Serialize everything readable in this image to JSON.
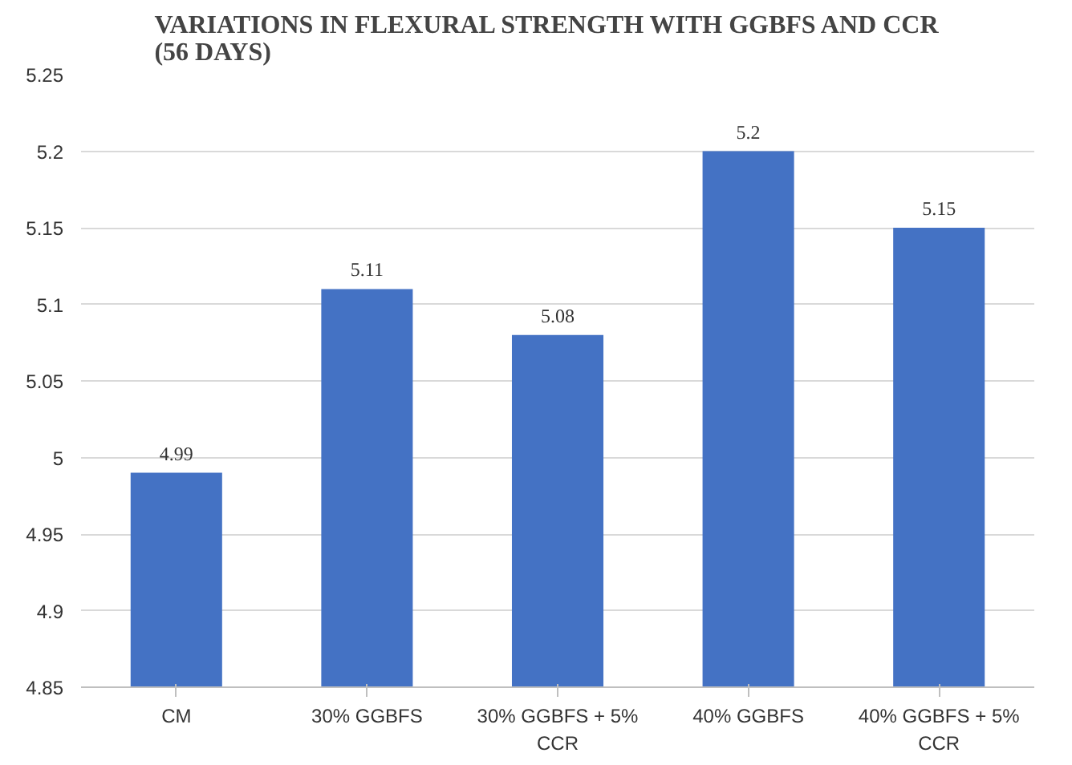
{
  "chart_data": {
    "type": "bar",
    "title": "VARIATIONS  IN  FLEXURAL STRENGTH  WITH GGBFS AND CCR\n(56 DAYS)",
    "categories": [
      "CM",
      "30% GGBFS",
      "30% GGBFS + 5% CCR",
      "40% GGBFS",
      "40% GGBFS + 5% CCR"
    ],
    "values": [
      4.99,
      5.11,
      5.08,
      5.2,
      5.15
    ],
    "color": "#4472c4",
    "ylim": [
      4.85,
      5.25
    ],
    "yticks": [
      4.85,
      4.9,
      4.95,
      5,
      5.05,
      5.1,
      5.15,
      5.2,
      5.25
    ],
    "grid": "y",
    "data_labels": true
  }
}
